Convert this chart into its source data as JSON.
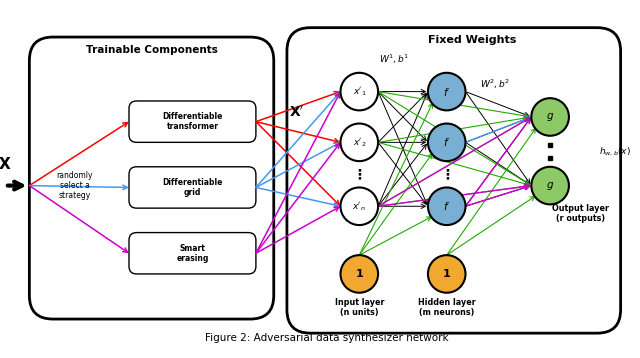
{
  "title": "Fixed Weights",
  "trainable_title": "Trainable Components",
  "caption": "Figure 2: Adversarial data synthesizer network",
  "bg_color": "#ffffff",
  "node_white": "#ffffff",
  "node_blue": "#7aafd4",
  "node_green": "#8dc966",
  "node_orange": "#f0a830",
  "arrow_red": "#ff0000",
  "arrow_blue": "#4499ee",
  "arrow_magenta": "#cc00cc",
  "arrow_black": "#000000",
  "arrow_green": "#22aa00",
  "arrow_darkblue": "#3355cc",
  "weight_label1": "$W^1,b^1$",
  "weight_label2": "$W^2,b^2$",
  "hw_label": "$h_{w,b}(x)$",
  "x_label": "$\\mathbf{X}$",
  "xprime_label": "$\\mathbf{X'}$",
  "input_layer_label": "Input layer\n(n units)",
  "hidden_layer_label": "Hidden layer\n(m neurons)",
  "output_layer_label": "Output layer\n(r outputs)",
  "random_label": "randomly\nselect a\nstrategy",
  "trainable_boxes": [
    "Differentiable\ntransformer",
    "Differentiable\ngrid",
    "Smart\nerasing"
  ]
}
